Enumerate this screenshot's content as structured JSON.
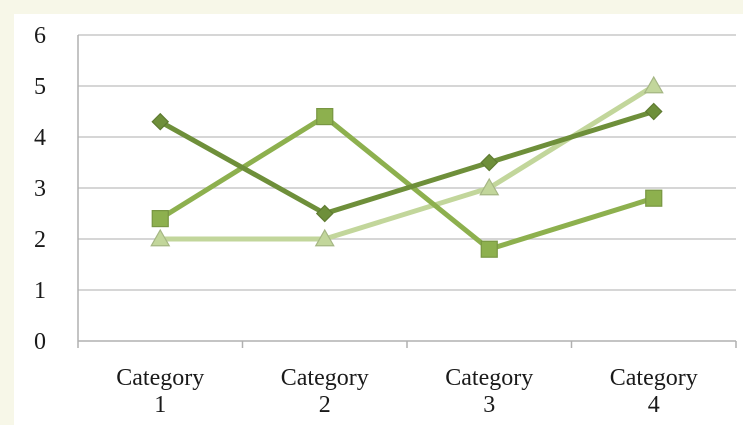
{
  "chart_data": {
    "type": "line",
    "categories": [
      [
        "Category",
        "1"
      ],
      [
        "Category",
        "2"
      ],
      [
        "Category",
        "3"
      ],
      [
        "Category",
        "4"
      ]
    ],
    "ylim": [
      0,
      6
    ],
    "yticks": [
      "0",
      "1",
      "2",
      "3",
      "4",
      "5",
      "6"
    ],
    "grid": true,
    "legend": "none",
    "series": [
      {
        "values": [
          4.3,
          2.5,
          3.5,
          4.5
        ],
        "color": "#6e8f3a",
        "marker": "diamond"
      },
      {
        "values": [
          2.4,
          4.4,
          1.8,
          2.8
        ],
        "color": "#8db04e",
        "marker": "square"
      },
      {
        "values": [
          2.0,
          2.0,
          3.0,
          5.0
        ],
        "color": "#c2d69b",
        "marker": "triangle"
      }
    ]
  }
}
